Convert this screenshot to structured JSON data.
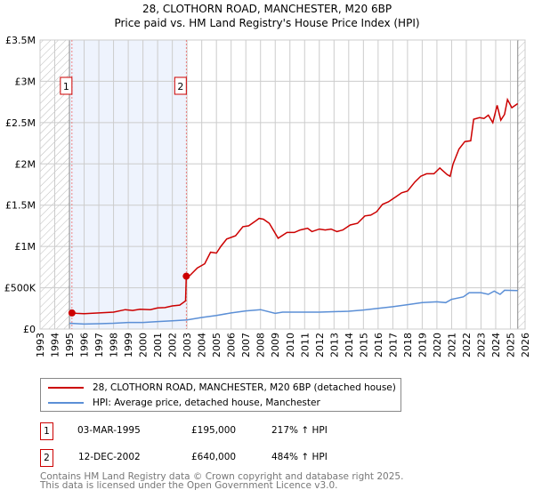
{
  "chart_data": {
    "type": "line",
    "title": "28, CLOTHORN ROAD, MANCHESTER, M20 6BP",
    "subtitle": "Price paid vs. HM Land Registry's House Price Index (HPI)",
    "xlim": [
      1993,
      2026
    ],
    "ylim": [
      0,
      3500000
    ],
    "x_ticks": [
      "1993",
      "1994",
      "1995",
      "1996",
      "1997",
      "1998",
      "1999",
      "2000",
      "2001",
      "2002",
      "2003",
      "2004",
      "2005",
      "2006",
      "2007",
      "2008",
      "2009",
      "2010",
      "2011",
      "2012",
      "2013",
      "2014",
      "2015",
      "2016",
      "2017",
      "2018",
      "2019",
      "2020",
      "2021",
      "2022",
      "2023",
      "2024",
      "2025",
      "2026"
    ],
    "y_ticks": [
      {
        "v": 0,
        "l": "£0"
      },
      {
        "v": 500000,
        "l": "£500K"
      },
      {
        "v": 1000000,
        "l": "£1M"
      },
      {
        "v": 1500000,
        "l": "£1.5M"
      },
      {
        "v": 2000000,
        "l": "£2M"
      },
      {
        "v": 2500000,
        "l": "£2.5M"
      },
      {
        "v": 3000000,
        "l": "£3M"
      },
      {
        "v": 3500000,
        "l": "£3.5M"
      }
    ],
    "grid": true,
    "hatched_before": 1995.0,
    "hatched_after": 2025.5,
    "shaded_range": [
      1995.0,
      2002.95
    ],
    "series": [
      {
        "name": "28, CLOTHORN ROAD, MANCHESTER, M20 6BP (detached house)",
        "color": "#cc0000",
        "x": [
          1995.17,
          1995.5,
          1996,
          1997,
          1998,
          1998.8,
          1999.3,
          1999.8,
          2000.5,
          2001,
          2001.5,
          2002,
          2002.5,
          2002.9,
          2002.95,
          2003.2,
          2003.7,
          2004.2,
          2004.6,
          2005,
          2005.3,
          2005.7,
          2006.3,
          2006.8,
          2007.2,
          2007.6,
          2007.9,
          2008.2,
          2008.6,
          2009.2,
          2009.8,
          2010.3,
          2010.7,
          2011.2,
          2011.5,
          2012,
          2012.4,
          2012.8,
          2013.2,
          2013.6,
          2014.1,
          2014.6,
          2015.1,
          2015.5,
          2015.9,
          2016.3,
          2016.7,
          2017.2,
          2017.6,
          2018,
          2018.5,
          2018.9,
          2019.3,
          2019.8,
          2020.2,
          2020.7,
          2020.9,
          2021.1,
          2021.5,
          2021.9,
          2022.3,
          2022.5,
          2022.9,
          2023.2,
          2023.5,
          2023.8,
          2024.1,
          2024.35,
          2024.6,
          2024.8,
          2025.1,
          2025.5
        ],
        "y": [
          195000,
          190000,
          185000,
          195000,
          205000,
          235000,
          225000,
          240000,
          235000,
          255000,
          260000,
          280000,
          290000,
          340000,
          640000,
          650000,
          740000,
          790000,
          930000,
          920000,
          1000000,
          1090000,
          1130000,
          1240000,
          1250000,
          1300000,
          1340000,
          1330000,
          1280000,
          1100000,
          1170000,
          1170000,
          1200000,
          1220000,
          1180000,
          1210000,
          1200000,
          1210000,
          1180000,
          1200000,
          1260000,
          1280000,
          1370000,
          1380000,
          1420000,
          1510000,
          1540000,
          1600000,
          1650000,
          1670000,
          1780000,
          1850000,
          1880000,
          1880000,
          1950000,
          1870000,
          1850000,
          2000000,
          2180000,
          2270000,
          2280000,
          2540000,
          2560000,
          2550000,
          2590000,
          2500000,
          2710000,
          2530000,
          2600000,
          2780000,
          2680000,
          2730000
        ]
      },
      {
        "name": "HPI: Average price, detached house, Manchester",
        "color": "#5b8fd6",
        "x": [
          1995,
          1996,
          1997,
          1998,
          1999,
          2000,
          2001,
          2002,
          2003,
          2004,
          2005,
          2006,
          2007,
          2008,
          2009,
          2009.5,
          2010,
          2012,
          2014,
          2015,
          2016,
          2017,
          2018,
          2019,
          2020,
          2020.6,
          2021,
          2021.8,
          2022.2,
          2023,
          2023.5,
          2023.9,
          2024.3,
          2024.6,
          2025.5
        ],
        "y": [
          70000,
          60000,
          65000,
          70000,
          80000,
          80000,
          90000,
          100000,
          110000,
          140000,
          165000,
          195000,
          220000,
          235000,
          190000,
          205000,
          205000,
          205000,
          215000,
          230000,
          250000,
          270000,
          295000,
          320000,
          330000,
          320000,
          360000,
          390000,
          440000,
          440000,
          420000,
          460000,
          420000,
          470000,
          465000
        ]
      }
    ],
    "markers": [
      {
        "label": "1",
        "x": 1995.17,
        "y": 195000
      },
      {
        "label": "2",
        "x": 2002.95,
        "y": 640000
      }
    ]
  },
  "legend": {
    "property": "28, CLOTHORN ROAD, MANCHESTER, M20 6BP (detached house)",
    "hpi": "HPI: Average price, detached house, Manchester"
  },
  "sales": [
    {
      "num": "1",
      "date": "03-MAR-1995",
      "price": "£195,000",
      "hpi": "217% ↑ HPI"
    },
    {
      "num": "2",
      "date": "12-DEC-2002",
      "price": "£640,000",
      "hpi": "484% ↑ HPI"
    }
  ],
  "footer": {
    "line1": "Contains HM Land Registry data © Crown copyright and database right 2025.",
    "line2": "This data is licensed under the Open Government Licence v3.0."
  }
}
